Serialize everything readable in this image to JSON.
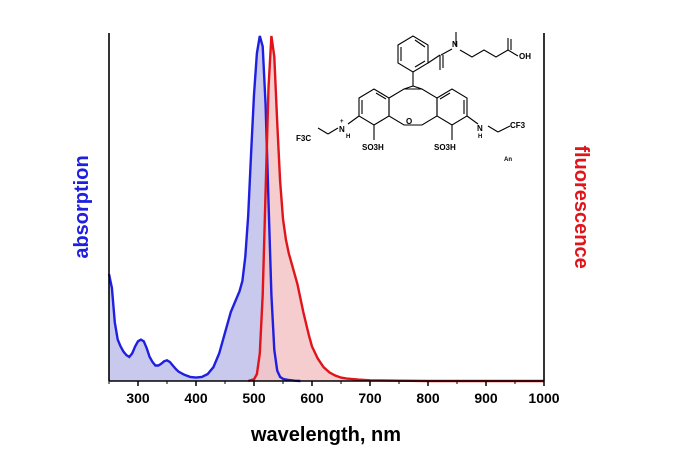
{
  "chart_data": {
    "type": "area",
    "xlabel": "wavelength, nm",
    "ylabel_left": "absorption",
    "ylabel_right": "fluorescence",
    "xlim": [
      250,
      1000
    ],
    "ylim": [
      0,
      1.0
    ],
    "x_ticks": [
      "300",
      "400",
      "500",
      "600",
      "700",
      "800",
      "900",
      "1000"
    ],
    "grid": false,
    "series": [
      {
        "name": "absorption",
        "color": "#1f1fe0",
        "fill": "#c9c9ee",
        "x": [
          250,
          255,
          260,
          265,
          270,
          275,
          280,
          285,
          290,
          295,
          300,
          305,
          310,
          315,
          320,
          325,
          330,
          335,
          340,
          345,
          350,
          355,
          360,
          365,
          370,
          380,
          390,
          400,
          410,
          420,
          430,
          440,
          450,
          460,
          465,
          470,
          475,
          480,
          485,
          490,
          495,
          500,
          505,
          510,
          515,
          520,
          525,
          530,
          535,
          540,
          545,
          550,
          560,
          570,
          580
        ],
        "y": [
          0.31,
          0.27,
          0.17,
          0.12,
          0.1,
          0.085,
          0.075,
          0.07,
          0.08,
          0.1,
          0.115,
          0.12,
          0.115,
          0.095,
          0.07,
          0.055,
          0.045,
          0.045,
          0.05,
          0.057,
          0.06,
          0.055,
          0.045,
          0.035,
          0.027,
          0.018,
          0.012,
          0.01,
          0.012,
          0.02,
          0.04,
          0.08,
          0.14,
          0.2,
          0.22,
          0.24,
          0.26,
          0.29,
          0.36,
          0.48,
          0.66,
          0.83,
          0.95,
          1.0,
          0.97,
          0.8,
          0.52,
          0.25,
          0.09,
          0.03,
          0.012,
          0.006,
          0.003,
          0.001,
          0.0
        ]
      },
      {
        "name": "fluorescence",
        "color": "#e0141a",
        "fill": "#f3c4c6",
        "x": [
          490,
          500,
          505,
          510,
          515,
          520,
          525,
          530,
          535,
          540,
          545,
          550,
          555,
          560,
          565,
          570,
          575,
          580,
          585,
          590,
          595,
          600,
          610,
          620,
          630,
          640,
          650,
          660,
          680,
          700,
          750,
          800,
          900,
          1000
        ],
        "y": [
          0.0,
          0.005,
          0.02,
          0.08,
          0.25,
          0.55,
          0.85,
          1.0,
          0.94,
          0.75,
          0.58,
          0.47,
          0.41,
          0.37,
          0.34,
          0.31,
          0.28,
          0.24,
          0.2,
          0.165,
          0.13,
          0.1,
          0.065,
          0.04,
          0.025,
          0.016,
          0.01,
          0.007,
          0.004,
          0.002,
          0.001,
          0.0,
          0.0,
          0.0
        ]
      }
    ]
  },
  "colors": {
    "axis": "#000000",
    "absorption_label": "#1f1fe0",
    "fluorescence_label": "#e0141a"
  },
  "structure_labels": {
    "f3c_left": "F3C",
    "nh_plus": "N",
    "sulfo_left": "SO3H",
    "sulfo_right": "SO3H",
    "nh_right": "N",
    "cf3_right": "CF3",
    "oh": "OH",
    "ring_o": "O",
    "anion": "An"
  }
}
